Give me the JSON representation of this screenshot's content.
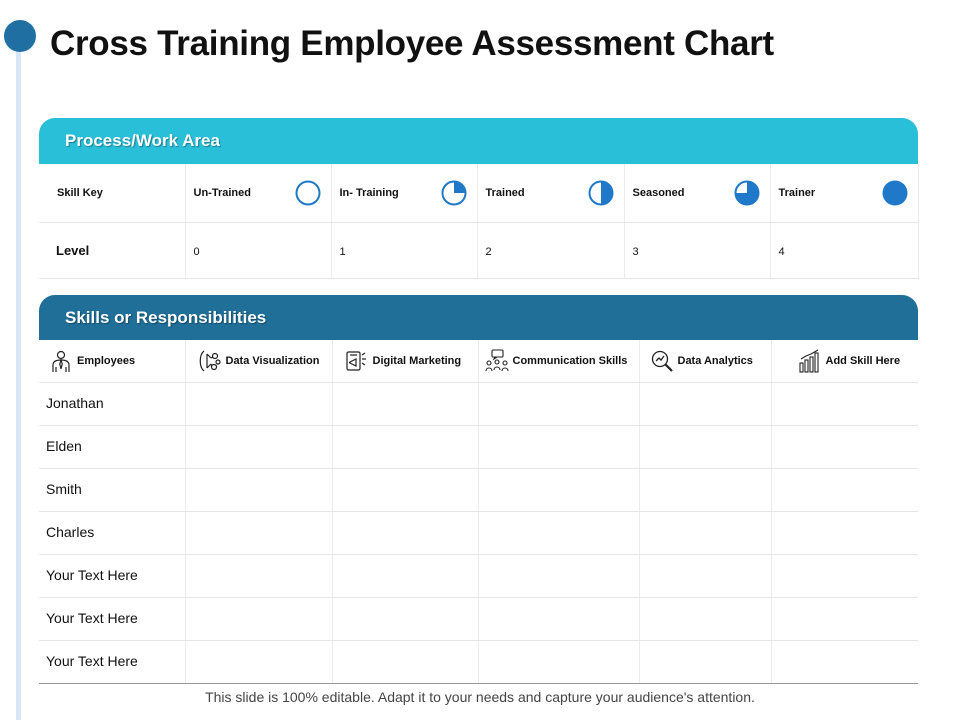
{
  "title": "Cross Training Employee Assessment Chart",
  "process": {
    "header": "Process/Work Area",
    "skill_key_label": "Skill Key",
    "level_label": "Level",
    "levels": [
      {
        "label": "Un-Trained",
        "value": "0",
        "fill": 0
      },
      {
        "label": "In- Training",
        "value": "1",
        "fill": 0.25
      },
      {
        "label": "Trained",
        "value": "2",
        "fill": 0.5
      },
      {
        "label": "Seasoned",
        "value": "3",
        "fill": 0.75
      },
      {
        "label": "Trainer",
        "value": "4",
        "fill": 1
      }
    ]
  },
  "skills": {
    "header": "Skills or Responsibilities",
    "columns": [
      {
        "label": "Employees",
        "icon": "employee-icon"
      },
      {
        "label": "Data Visualization",
        "icon": "data-visualization-icon"
      },
      {
        "label": "Digital Marketing",
        "icon": "digital-marketing-icon"
      },
      {
        "label": "Communication Skills",
        "icon": "communication-icon"
      },
      {
        "label": "Data Analytics",
        "icon": "data-analytics-icon"
      },
      {
        "label": "Add Skill Here",
        "icon": "bar-chart-icon"
      }
    ],
    "rows": [
      "Jonathan",
      "Elden",
      "Smith",
      "Charles",
      "Your Text Here",
      "Your Text Here",
      "Your Text Here"
    ]
  },
  "footer": "This slide is 100% editable. Adapt it to your needs and capture your audience's attention.",
  "colors": {
    "accent": "#1f78c8",
    "process_bar": "#29bfd9",
    "skills_bar": "#1f6f99",
    "dot": "#1f6fa3"
  }
}
